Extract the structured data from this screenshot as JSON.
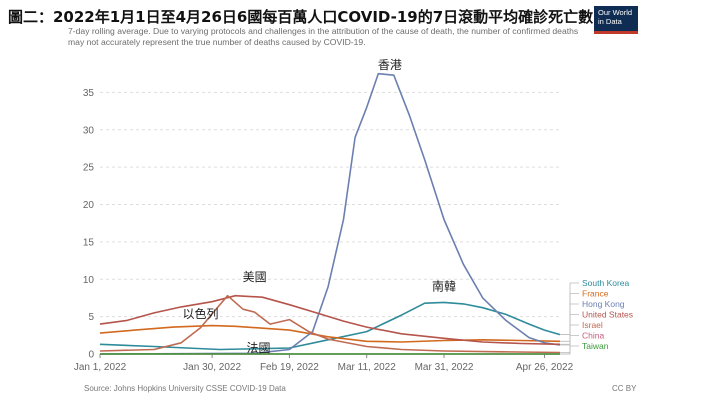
{
  "header": {
    "title": "圖二：2022年1月1日至4月26日6國每百萬人口COVID-19的7日滾動平均確診死亡數",
    "subtitle": "7-day rolling average. Due to varying protocols and challenges in the attribution of the cause of death, the number of confirmed deaths may not accurately represent the true number of deaths caused by COVID-19.",
    "logo_line1": "Our World",
    "logo_line2": "in Data"
  },
  "footer": {
    "source": "Source: Johns Hopkins University CSSE COVID-19 Data",
    "license": "CC BY"
  },
  "colors": {
    "grid": "#dddddd",
    "axis": "#888888"
  },
  "chart_data": {
    "type": "line",
    "x_type": "date",
    "xlim": [
      "2022-01-01",
      "2022-04-30"
    ],
    "ylim": [
      0,
      38
    ],
    "yticks": [
      0,
      5,
      10,
      15,
      20,
      25,
      30,
      35
    ],
    "xticks": [
      {
        "date": "2022-01-01",
        "label": "Jan 1, 2022"
      },
      {
        "date": "2022-01-30",
        "label": "Jan 30, 2022"
      },
      {
        "date": "2022-02-19",
        "label": "Feb 19, 2022"
      },
      {
        "date": "2022-03-11",
        "label": "Mar 11, 2022"
      },
      {
        "date": "2022-03-31",
        "label": "Mar 31, 2022"
      },
      {
        "date": "2022-04-26",
        "label": "Apr 26, 2022"
      }
    ],
    "grid": true,
    "legend_position": "right",
    "series": [
      {
        "name": "South Korea",
        "color": "#2e8b9a",
        "points": [
          [
            "2022-01-01",
            1.3
          ],
          [
            "2022-01-15",
            1.0
          ],
          [
            "2022-02-01",
            0.6
          ],
          [
            "2022-02-19",
            0.8
          ],
          [
            "2022-03-01",
            1.9
          ],
          [
            "2022-03-11",
            3.0
          ],
          [
            "2022-03-20",
            5.2
          ],
          [
            "2022-03-26",
            6.8
          ],
          [
            "2022-03-31",
            6.9
          ],
          [
            "2022-04-05",
            6.7
          ],
          [
            "2022-04-10",
            6.2
          ],
          [
            "2022-04-16",
            5.3
          ],
          [
            "2022-04-22",
            4.0
          ],
          [
            "2022-04-26",
            3.2
          ],
          [
            "2022-04-30",
            2.6
          ]
        ]
      },
      {
        "name": "France",
        "color": "#d2691e",
        "points": [
          [
            "2022-01-01",
            2.8
          ],
          [
            "2022-01-10",
            3.2
          ],
          [
            "2022-01-20",
            3.6
          ],
          [
            "2022-01-30",
            3.8
          ],
          [
            "2022-02-05",
            3.7
          ],
          [
            "2022-02-19",
            3.2
          ],
          [
            "2022-03-01",
            2.3
          ],
          [
            "2022-03-11",
            1.7
          ],
          [
            "2022-03-20",
            1.6
          ],
          [
            "2022-03-31",
            1.8
          ],
          [
            "2022-04-10",
            1.9
          ],
          [
            "2022-04-20",
            1.8
          ],
          [
            "2022-04-30",
            1.7
          ]
        ]
      },
      {
        "name": "Hong Kong",
        "color": "#6b7fb0",
        "points": [
          [
            "2022-01-01",
            0.0
          ],
          [
            "2022-02-10",
            0.1
          ],
          [
            "2022-02-19",
            0.6
          ],
          [
            "2022-02-25",
            3.0
          ],
          [
            "2022-03-01",
            9.0
          ],
          [
            "2022-03-05",
            18.0
          ],
          [
            "2022-03-08",
            29.0
          ],
          [
            "2022-03-11",
            33.0
          ],
          [
            "2022-03-14",
            37.5
          ],
          [
            "2022-03-18",
            37.3
          ],
          [
            "2022-03-22",
            32.0
          ],
          [
            "2022-03-26",
            26.0
          ],
          [
            "2022-03-31",
            18.0
          ],
          [
            "2022-04-05",
            12.0
          ],
          [
            "2022-04-10",
            7.5
          ],
          [
            "2022-04-16",
            4.5
          ],
          [
            "2022-04-22",
            2.2
          ],
          [
            "2022-04-26",
            1.5
          ],
          [
            "2022-04-30",
            1.2
          ]
        ]
      },
      {
        "name": "United States",
        "color": "#b5544b",
        "points": [
          [
            "2022-01-01",
            4.0
          ],
          [
            "2022-01-08",
            4.5
          ],
          [
            "2022-01-15",
            5.5
          ],
          [
            "2022-01-22",
            6.3
          ],
          [
            "2022-01-30",
            7.0
          ],
          [
            "2022-02-05",
            7.8
          ],
          [
            "2022-02-12",
            7.6
          ],
          [
            "2022-02-19",
            6.6
          ],
          [
            "2022-02-26",
            5.5
          ],
          [
            "2022-03-05",
            4.4
          ],
          [
            "2022-03-11",
            3.6
          ],
          [
            "2022-03-20",
            2.7
          ],
          [
            "2022-03-31",
            2.1
          ],
          [
            "2022-04-10",
            1.6
          ],
          [
            "2022-04-20",
            1.4
          ],
          [
            "2022-04-30",
            1.3
          ]
        ]
      },
      {
        "name": "Israel",
        "color": "#c06a52",
        "points": [
          [
            "2022-01-01",
            0.4
          ],
          [
            "2022-01-15",
            0.6
          ],
          [
            "2022-01-22",
            1.5
          ],
          [
            "2022-01-27",
            3.5
          ],
          [
            "2022-01-31",
            6.0
          ],
          [
            "2022-02-03",
            7.8
          ],
          [
            "2022-02-07",
            6.0
          ],
          [
            "2022-02-10",
            5.6
          ],
          [
            "2022-02-14",
            4.0
          ],
          [
            "2022-02-19",
            4.6
          ],
          [
            "2022-02-24",
            3.0
          ],
          [
            "2022-03-01",
            2.0
          ],
          [
            "2022-03-11",
            1.0
          ],
          [
            "2022-03-20",
            0.6
          ],
          [
            "2022-03-31",
            0.4
          ],
          [
            "2022-04-15",
            0.3
          ],
          [
            "2022-04-30",
            0.2
          ]
        ]
      },
      {
        "name": "China",
        "color": "#c85a7a",
        "points": [
          [
            "2022-01-01",
            0.0
          ],
          [
            "2022-04-30",
            0.0
          ]
        ]
      },
      {
        "name": "Taiwan",
        "color": "#3a9a3a",
        "points": [
          [
            "2022-01-01",
            0.0
          ],
          [
            "2022-04-30",
            0.0
          ]
        ]
      }
    ],
    "annotations": [
      {
        "text": "香港",
        "series": "Hong Kong"
      },
      {
        "text": "南韓",
        "series": "South Korea"
      },
      {
        "text": "以色列",
        "series": "Israel"
      },
      {
        "text": "美國",
        "series": "United States"
      },
      {
        "text": "法國",
        "series": "France"
      }
    ]
  }
}
